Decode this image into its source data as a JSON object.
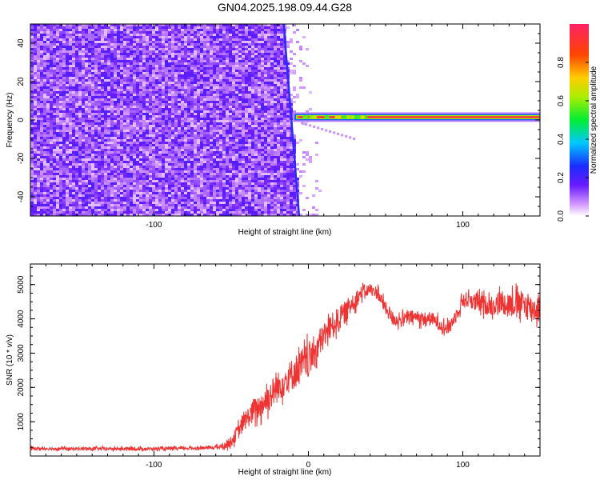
{
  "title": "GN04.2025.198.09.44.G28",
  "chart_data": [
    {
      "type": "heatmap",
      "xlabel": "Height of straight line (km)",
      "ylabel": "Frequency (Hz)",
      "xlim": [
        -180,
        150
      ],
      "ylim": [
        -50,
        50
      ],
      "xticks": [
        -100,
        0,
        100
      ],
      "xtick_labels": [
        "-100",
        "",
        "100"
      ],
      "yticks": [
        -40,
        -20,
        0,
        20,
        40
      ],
      "ytick_labels": [
        "-40",
        "-20",
        "0",
        "20",
        "40"
      ],
      "colorbar": {
        "label": "Normalized spectral amplitude",
        "range": [
          0.0,
          1.0
        ],
        "ticks": [
          0.0,
          0.2,
          0.4,
          0.6,
          0.8
        ],
        "tick_labels": [
          "0.0",
          "0.2",
          "0.4",
          "0.6",
          "0.8"
        ],
        "colormap": "rainbow"
      },
      "features": {
        "noise_region_x": [
          -180,
          -10
        ],
        "boundary_x_top": -16,
        "boundary_x_bottom": -6,
        "signal_band_x": [
          -10,
          150
        ],
        "signal_band_freq": 1.5,
        "signal_band_peak_amplitude": 0.95
      }
    },
    {
      "type": "line",
      "xlabel": "Height of straight line (km)",
      "ylabel": "SNR (10 * v/v)",
      "xlim": [
        -180,
        150
      ],
      "ylim": [
        0,
        5600
      ],
      "xticks": [
        -100,
        0,
        100
      ],
      "xtick_labels": [
        "-100",
        "0",
        "100"
      ],
      "yticks": [
        1000,
        2000,
        3000,
        4000,
        5000
      ],
      "ytick_labels": [
        "1000",
        "2000",
        "3000",
        "4000",
        "5000"
      ],
      "color": "#ee3333",
      "series": [
        {
          "x": [
            -180,
            -150,
            -120,
            -90,
            -65,
            -55,
            -50,
            -45,
            -40,
            -35,
            -30,
            -25,
            -20,
            -15,
            -10,
            -5,
            0,
            5,
            10,
            15,
            20,
            25,
            30,
            35,
            40,
            45,
            50,
            55,
            60,
            65,
            70,
            75,
            80,
            85,
            90,
            95,
            100,
            105,
            110,
            115,
            120,
            125,
            130,
            135,
            140,
            145,
            150
          ],
          "y": [
            220,
            210,
            210,
            210,
            240,
            280,
            420,
            750,
            1100,
            1300,
            1500,
            1750,
            2000,
            2200,
            2400,
            2600,
            2800,
            3100,
            3500,
            3800,
            4000,
            4250,
            4550,
            4780,
            4850,
            4750,
            4300,
            4000,
            3950,
            4050,
            4050,
            4000,
            4000,
            3850,
            3700,
            4050,
            4550,
            4550,
            4450,
            4400,
            4400,
            4500,
            4450,
            4450,
            4400,
            4300,
            4300
          ],
          "spread": [
            60,
            60,
            60,
            60,
            60,
            100,
            200,
            300,
            350,
            450,
            500,
            550,
            550,
            550,
            600,
            650,
            650,
            600,
            500,
            450,
            450,
            400,
            350,
            250,
            200,
            250,
            250,
            250,
            250,
            250,
            250,
            250,
            250,
            250,
            250,
            250,
            300,
            300,
            350,
            350,
            400,
            450,
            450,
            500,
            500,
            500,
            500
          ]
        }
      ]
    }
  ]
}
